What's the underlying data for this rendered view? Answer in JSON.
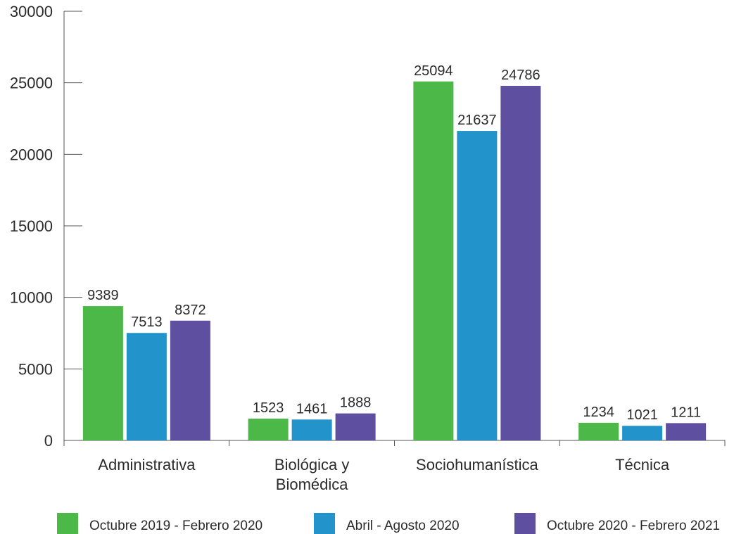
{
  "chart_data": {
    "type": "bar",
    "title": "",
    "xlabel": "",
    "ylabel": "",
    "ylim": [
      0,
      30000
    ],
    "yticks": [
      0,
      5000,
      10000,
      15000,
      20000,
      25000,
      30000
    ],
    "grid": false,
    "legend_position": "bottom",
    "categories": [
      [
        "Administrativa"
      ],
      [
        "Biológica y",
        "Biomédica"
      ],
      [
        "Sociohumanística"
      ],
      [
        "Técnica"
      ]
    ],
    "series": [
      {
        "name": "Octubre 2019 - Febrero 2020",
        "color": "#4cb848",
        "values": [
          9389,
          1523,
          25094,
          1234
        ]
      },
      {
        "name": "Abril - Agosto 2020",
        "color": "#2393cc",
        "values": [
          7513,
          1461,
          21637,
          1021
        ]
      },
      {
        "name": "Octubre 2020 - Febrero 2021",
        "color": "#5e4fa0",
        "values": [
          8372,
          1888,
          24786,
          1211
        ]
      }
    ]
  }
}
